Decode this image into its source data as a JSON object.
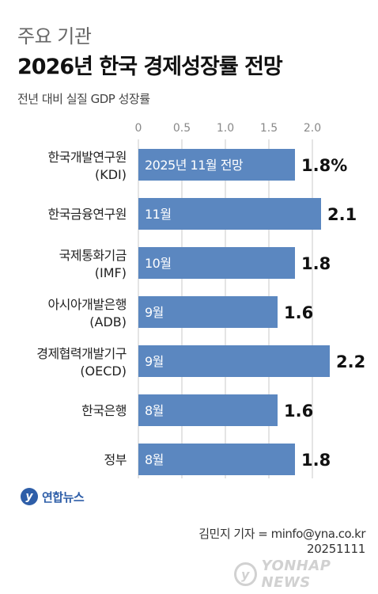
{
  "header": {
    "kicker": "주요 기관",
    "title": "2026년 한국 경제성장률 전망",
    "subtitle": "전년 대비 실질 GDP 성장률"
  },
  "chart_data": {
    "type": "bar",
    "orientation": "horizontal",
    "title": "2026년 한국 경제성장률 전망",
    "subtitle": "전년 대비 실질 GDP 성장률",
    "xlim": [
      0,
      2.5
    ],
    "ticks": [
      "0",
      "0.5",
      "1.0",
      "1.5",
      "2.0"
    ],
    "tick_values": [
      0,
      0.5,
      1.0,
      1.5,
      2.0
    ],
    "grid": true,
    "bar_color": "#5b87c0",
    "categories": [
      {
        "name": "한국개발연구원",
        "sub": "(KDI)",
        "value": 1.8,
        "value_label": "1.8%",
        "inner_label": "2025년 11월 전망"
      },
      {
        "name": "한국금융연구원",
        "sub": "",
        "value": 2.1,
        "value_label": "2.1",
        "inner_label": "11월"
      },
      {
        "name": "국제통화기금",
        "sub": "(IMF)",
        "value": 1.8,
        "value_label": "1.8",
        "inner_label": "10월"
      },
      {
        "name": "아시아개발은행",
        "sub": "(ADB)",
        "value": 1.6,
        "value_label": "1.6",
        "inner_label": "9월"
      },
      {
        "name": "경제협력개발기구",
        "sub": "(OECD)",
        "value": 2.2,
        "value_label": "2.2",
        "inner_label": "9월"
      },
      {
        "name": "한국은행",
        "sub": "",
        "value": 1.6,
        "value_label": "1.6",
        "inner_label": "8월"
      },
      {
        "name": "정부",
        "sub": "",
        "value": 1.8,
        "value_label": "1.8",
        "inner_label": "8월"
      }
    ]
  },
  "footer": {
    "logo_text": "연합뉴스",
    "logo_mark": "y",
    "credit": "김민지 기자 = minfo@yna.co.kr",
    "date": "20251111",
    "watermark": "YONHAP NEWS"
  },
  "colors": {
    "bar": "#5b87c0",
    "accent": "#2e5ea8",
    "grid": "#c8c8c8"
  }
}
